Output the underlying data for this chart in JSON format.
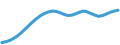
{
  "x": [
    0,
    1,
    2,
    3,
    4,
    5,
    6,
    7,
    8,
    9,
    10,
    11,
    12,
    13,
    14,
    15,
    16,
    17,
    18,
    19,
    20,
    21,
    22,
    23,
    24,
    25,
    26,
    27,
    28,
    29,
    30
  ],
  "y": [
    0.1,
    0.3,
    0.6,
    1.1,
    1.7,
    2.5,
    3.4,
    4.3,
    5.2,
    6.0,
    6.7,
    7.2,
    7.6,
    7.8,
    7.7,
    7.4,
    7.0,
    6.7,
    6.8,
    7.1,
    7.5,
    7.8,
    7.6,
    7.2,
    6.8,
    6.5,
    6.7,
    7.1,
    7.5,
    7.8,
    8.0
  ],
  "line_color": "#3c9fd5",
  "line_width": 2.2,
  "background_color": "#ffffff"
}
